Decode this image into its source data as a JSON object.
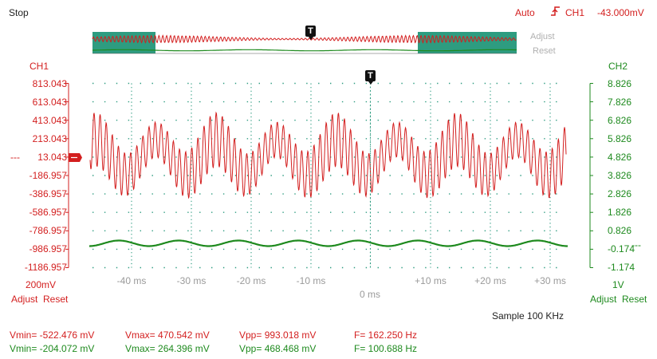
{
  "status": {
    "run_state": "Stop"
  },
  "trigger": {
    "mode": "Auto",
    "edge_icon": "rising-edge-icon",
    "channel": "CH1",
    "level": "-43.000mV",
    "marker": "T"
  },
  "overview": {
    "adjust_label": "Adjust",
    "reset_label": "Reset"
  },
  "ch1": {
    "label": "CH1",
    "ticks": [
      "813.043",
      "613.043",
      "413.043",
      "213.043",
      "13.043",
      "-186.957",
      "-386.957",
      "-586.957",
      "-786.957",
      "-986.957",
      "-1186.957"
    ],
    "offset_prefix": "---",
    "scale": "200mV",
    "adjust_label": "Adjust",
    "reset_label": "Reset",
    "color": "#d31f1f",
    "vmin": "Vmin= -522.476 mV",
    "vmax": "Vmax= 470.542 mV",
    "vpp": "Vpp= 993.018 mV",
    "freq": "F= 162.250 Hz"
  },
  "ch2": {
    "label": "CH2",
    "ticks": [
      "8.826",
      "7.826",
      "6.826",
      "5.826",
      "4.826",
      "3.826",
      "2.826",
      "1.826",
      "0.826",
      "-0.174",
      "-1.174"
    ],
    "offset_suffix": "---",
    "scale": "1V",
    "adjust_label": "Adjust",
    "reset_label": "Reset",
    "color": "#1e8a1e",
    "vmin": "Vmin= -204.072 mV",
    "vmax": "Vmax= 264.396 mV",
    "vpp": "Vpp= 468.468 mV",
    "freq": "F= 100.688 Hz"
  },
  "time_axis": {
    "ticks": [
      "-40 ms",
      "-30 ms",
      "-20 ms",
      "-10 ms",
      "0 ms",
      "+10 ms",
      "+20 ms",
      "+30 ms"
    ]
  },
  "sample": "Sample 100 KHz"
}
